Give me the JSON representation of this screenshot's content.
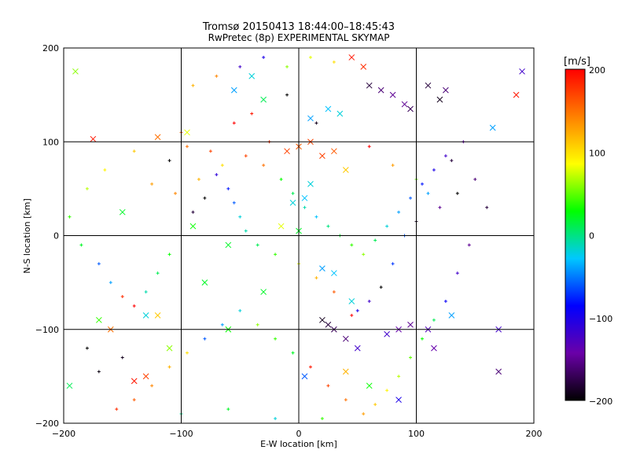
{
  "chart_data": {
    "type": "scatter",
    "title": "Tromsø 20150413 18:44:00–18:45:43",
    "subtitle": "RwPretec (8p) EXPERIMENTAL SKYMAP",
    "xlabel": "E-W location [km]",
    "ylabel": "N-S location [km]",
    "xlim": [
      -200,
      200
    ],
    "ylim": [
      -200,
      200
    ],
    "xticks": [
      "−200",
      "−100",
      "0",
      "100",
      "200"
    ],
    "yticks": [
      "−200",
      "−100",
      "0",
      "100",
      "200"
    ],
    "xtick_values": [
      -200,
      -100,
      0,
      100,
      200
    ],
    "ytick_values": [
      -200,
      -100,
      0,
      100,
      200
    ],
    "grid": true,
    "colorbar": {
      "label": "[m/s]",
      "range": [
        -200,
        200
      ],
      "ticks": [
        "200",
        "100",
        "0",
        "−100",
        "−200"
      ],
      "tick_values": [
        200,
        100,
        0,
        -100,
        -200
      ],
      "colors": [
        "#000000",
        "#6a00a8",
        "#0000ff",
        "#00c8ff",
        "#00ff00",
        "#ffff00",
        "#ff8000",
        "#ff0000"
      ]
    },
    "markers": {
      "small": "+",
      "large": "x"
    },
    "series": [
      {
        "marker": "x",
        "points": [
          [
            -190,
            175,
            60
          ],
          [
            -175,
            103,
            190
          ],
          [
            -120,
            105,
            150
          ],
          [
            -95,
            110,
            80
          ],
          [
            -55,
            155,
            -40
          ],
          [
            -40,
            170,
            -20
          ],
          [
            -30,
            145,
            10
          ],
          [
            10,
            125,
            -40
          ],
          [
            25,
            135,
            -30
          ],
          [
            35,
            130,
            -20
          ],
          [
            45,
            190,
            190
          ],
          [
            55,
            180,
            180
          ],
          [
            60,
            160,
            -180
          ],
          [
            70,
            155,
            -160
          ],
          [
            80,
            150,
            -150
          ],
          [
            90,
            140,
            -150
          ],
          [
            95,
            135,
            -170
          ],
          [
            110,
            160,
            -180
          ],
          [
            120,
            145,
            -190
          ],
          [
            125,
            155,
            -160
          ],
          [
            185,
            150,
            190
          ],
          [
            190,
            175,
            -120
          ],
          [
            165,
            115,
            -40
          ],
          [
            -150,
            25,
            20
          ],
          [
            -170,
            -90,
            40
          ],
          [
            -130,
            -85,
            -20
          ],
          [
            -110,
            -120,
            60
          ],
          [
            -140,
            -155,
            190
          ],
          [
            -130,
            -150,
            170
          ],
          [
            -195,
            -160,
            10
          ],
          [
            -80,
            -50,
            20
          ],
          [
            -60,
            -100,
            30
          ],
          [
            20,
            -90,
            -190
          ],
          [
            25,
            -95,
            -180
          ],
          [
            30,
            -100,
            -170
          ],
          [
            40,
            -110,
            -160
          ],
          [
            50,
            -120,
            -120
          ],
          [
            75,
            -105,
            -120
          ],
          [
            85,
            -100,
            -140
          ],
          [
            95,
            -95,
            -150
          ],
          [
            110,
            -100,
            -130
          ],
          [
            115,
            -120,
            -140
          ],
          [
            170,
            -145,
            -160
          ],
          [
            170,
            -100,
            -120
          ],
          [
            130,
            -85,
            -40
          ],
          [
            85,
            -175,
            -100
          ],
          [
            -10,
            90,
            170
          ],
          [
            0,
            95,
            160
          ],
          [
            10,
            100,
            170
          ],
          [
            20,
            85,
            170
          ],
          [
            30,
            90,
            160
          ],
          [
            40,
            70,
            110
          ],
          [
            -5,
            35,
            -20
          ],
          [
            5,
            40,
            -30
          ],
          [
            10,
            55,
            -20
          ],
          [
            -15,
            10,
            80
          ],
          [
            0,
            5,
            20
          ],
          [
            20,
            -35,
            -40
          ],
          [
            30,
            -40,
            -30
          ],
          [
            45,
            -70,
            -20
          ],
          [
            -120,
            -85,
            110
          ],
          [
            -160,
            -100,
            150
          ],
          [
            -90,
            10,
            30
          ],
          [
            -60,
            -10,
            20
          ],
          [
            -30,
            -60,
            20
          ],
          [
            5,
            -150,
            -60
          ],
          [
            40,
            -145,
            120
          ],
          [
            60,
            -160,
            30
          ]
        ]
      },
      {
        "marker": "+",
        "points": [
          [
            -180,
            -120,
            -200
          ],
          [
            -170,
            -145,
            -195
          ],
          [
            -150,
            -130,
            -190
          ],
          [
            -110,
            80,
            -200
          ],
          [
            -100,
            110,
            160
          ],
          [
            -95,
            95,
            150
          ],
          [
            -75,
            90,
            170
          ],
          [
            -55,
            120,
            200
          ],
          [
            -40,
            130,
            190
          ],
          [
            -25,
            100,
            180
          ],
          [
            -10,
            150,
            -200
          ],
          [
            15,
            120,
            -190
          ],
          [
            60,
            95,
            200
          ],
          [
            80,
            75,
            130
          ],
          [
            100,
            60,
            50
          ],
          [
            110,
            45,
            -40
          ],
          [
            130,
            80,
            -180
          ],
          [
            135,
            45,
            -200
          ],
          [
            120,
            30,
            -150
          ],
          [
            100,
            15,
            -190
          ],
          [
            90,
            0,
            -60
          ],
          [
            80,
            -30,
            -70
          ],
          [
            70,
            -55,
            -200
          ],
          [
            60,
            -70,
            -120
          ],
          [
            50,
            -80,
            -100
          ],
          [
            45,
            -85,
            200
          ],
          [
            30,
            -60,
            160
          ],
          [
            15,
            -45,
            120
          ],
          [
            0,
            -30,
            80
          ],
          [
            -20,
            -20,
            40
          ],
          [
            -35,
            -10,
            10
          ],
          [
            -45,
            5,
            -10
          ],
          [
            -50,
            20,
            -20
          ],
          [
            -55,
            35,
            -60
          ],
          [
            -60,
            50,
            -80
          ],
          [
            -70,
            65,
            -110
          ],
          [
            -80,
            40,
            -200
          ],
          [
            -90,
            25,
            -180
          ],
          [
            -100,
            0,
            60
          ],
          [
            -110,
            -20,
            30
          ],
          [
            -120,
            -40,
            10
          ],
          [
            -130,
            -60,
            -10
          ],
          [
            -140,
            -75,
            200
          ],
          [
            -150,
            -65,
            180
          ],
          [
            -160,
            -50,
            -40
          ],
          [
            -170,
            -30,
            -60
          ],
          [
            -185,
            -10,
            20
          ],
          [
            -195,
            20,
            40
          ],
          [
            -180,
            50,
            70
          ],
          [
            -165,
            70,
            90
          ],
          [
            -140,
            90,
            110
          ],
          [
            -125,
            55,
            130
          ],
          [
            -105,
            45,
            140
          ],
          [
            -85,
            60,
            120
          ],
          [
            -65,
            75,
            100
          ],
          [
            -45,
            85,
            170
          ],
          [
            -30,
            75,
            150
          ],
          [
            -15,
            60,
            30
          ],
          [
            -5,
            45,
            10
          ],
          [
            5,
            30,
            -10
          ],
          [
            15,
            20,
            -30
          ],
          [
            25,
            10,
            0
          ],
          [
            35,
            0,
            20
          ],
          [
            45,
            -10,
            40
          ],
          [
            55,
            -20,
            60
          ],
          [
            65,
            -5,
            10
          ],
          [
            75,
            10,
            -20
          ],
          [
            85,
            25,
            -40
          ],
          [
            95,
            40,
            -60
          ],
          [
            105,
            55,
            -80
          ],
          [
            115,
            70,
            -100
          ],
          [
            125,
            85,
            -120
          ],
          [
            140,
            100,
            -140
          ],
          [
            150,
            60,
            -160
          ],
          [
            160,
            30,
            -180
          ],
          [
            145,
            -10,
            -150
          ],
          [
            135,
            -40,
            -120
          ],
          [
            125,
            -70,
            -90
          ],
          [
            115,
            -90,
            10
          ],
          [
            105,
            -110,
            30
          ],
          [
            95,
            -130,
            50
          ],
          [
            85,
            -150,
            70
          ],
          [
            75,
            -165,
            90
          ],
          [
            65,
            -180,
            110
          ],
          [
            55,
            -190,
            130
          ],
          [
            40,
            -175,
            150
          ],
          [
            25,
            -160,
            170
          ],
          [
            10,
            -140,
            190
          ],
          [
            -5,
            -125,
            20
          ],
          [
            -20,
            -110,
            40
          ],
          [
            -35,
            -95,
            60
          ],
          [
            -50,
            -80,
            -20
          ],
          [
            -65,
            -95,
            -40
          ],
          [
            -80,
            -110,
            -60
          ],
          [
            -95,
            -125,
            100
          ],
          [
            -110,
            -140,
            120
          ],
          [
            -125,
            -160,
            140
          ],
          [
            -140,
            -175,
            160
          ],
          [
            -155,
            -185,
            180
          ],
          [
            -100,
            -190,
            0
          ],
          [
            -60,
            -185,
            20
          ],
          [
            -20,
            -195,
            -20
          ],
          [
            20,
            -195,
            40
          ],
          [
            -10,
            180,
            60
          ],
          [
            10,
            190,
            80
          ],
          [
            30,
            185,
            100
          ],
          [
            -30,
            190,
            -100
          ],
          [
            -50,
            180,
            -120
          ],
          [
            -70,
            170,
            140
          ],
          [
            -90,
            160,
            120
          ]
        ]
      }
    ]
  }
}
